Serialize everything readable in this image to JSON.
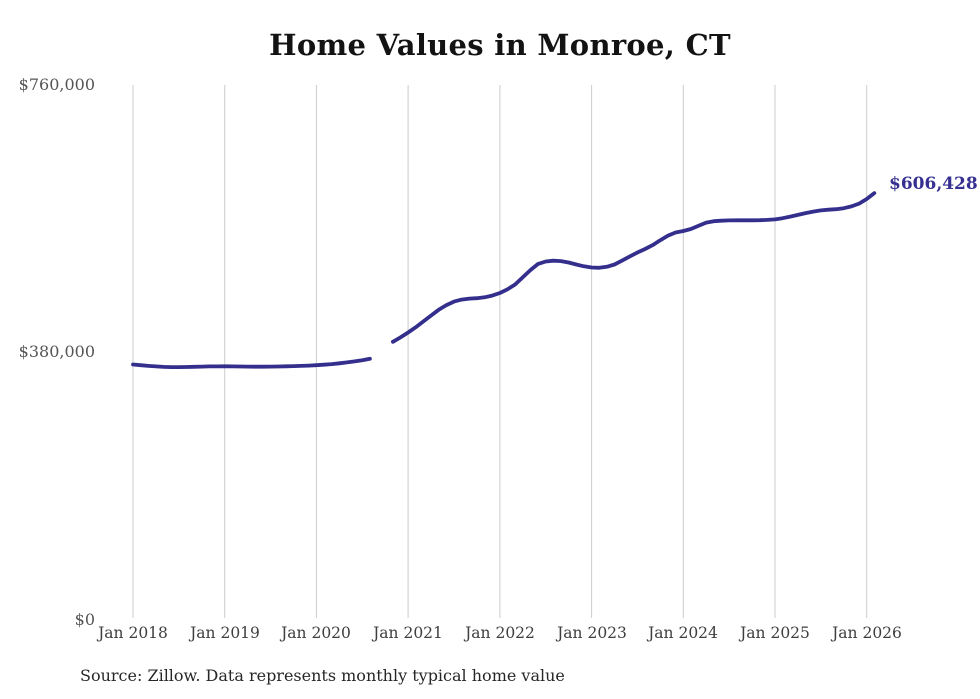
{
  "header": {
    "title": "Home Values in Monroe, CT"
  },
  "footer": {
    "source_note": "Source: Zillow. Data represents monthly typical home value"
  },
  "colors": {
    "line": "#342e8c",
    "end_label": "#353091",
    "gridline": "#cccccc",
    "background": "#ffffff"
  },
  "chart_data": {
    "type": "line",
    "title": "Home Values in Monroe, CT",
    "xlabel": "",
    "ylabel": "",
    "ylim": [
      0,
      760000
    ],
    "y_tick_values": [
      760000,
      380000,
      0
    ],
    "y_tick_labels": [
      "$760,000",
      "$380,000",
      "$0"
    ],
    "x_tick_labels": [
      "Jan 2018",
      "Jan 2019",
      "Jan 2020",
      "Jan 2021",
      "Jan 2022",
      "Jan 2023",
      "Jan 2024",
      "Jan 2025",
      "Jan 2026"
    ],
    "grid": "vertical-only",
    "legend": "none",
    "end_label": "$606,428",
    "end_value": 606428,
    "gap_months": [
      "2020-09",
      "2020-10"
    ],
    "series": [
      {
        "name": "Monthly typical home value",
        "x": [
          "2018-01",
          "2018-02",
          "2018-03",
          "2018-04",
          "2018-05",
          "2018-06",
          "2018-07",
          "2018-08",
          "2018-09",
          "2018-10",
          "2018-11",
          "2018-12",
          "2019-01",
          "2019-02",
          "2019-03",
          "2019-04",
          "2019-05",
          "2019-06",
          "2019-07",
          "2019-08",
          "2019-09",
          "2019-10",
          "2019-11",
          "2019-12",
          "2020-01",
          "2020-02",
          "2020-03",
          "2020-04",
          "2020-05",
          "2020-06",
          "2020-07",
          "2020-08",
          "2020-09",
          "2020-10",
          "2020-11",
          "2020-12",
          "2021-01",
          "2021-02",
          "2021-03",
          "2021-04",
          "2021-05",
          "2021-06",
          "2021-07",
          "2021-08",
          "2021-09",
          "2021-10",
          "2021-11",
          "2021-12",
          "2022-01",
          "2022-02",
          "2022-03",
          "2022-04",
          "2022-05",
          "2022-06",
          "2022-07",
          "2022-08",
          "2022-09",
          "2022-10",
          "2022-11",
          "2022-12",
          "2023-01",
          "2023-02",
          "2023-03",
          "2023-04",
          "2023-05",
          "2023-06",
          "2023-07",
          "2023-08",
          "2023-09",
          "2023-10",
          "2023-11",
          "2023-12",
          "2024-01",
          "2024-02",
          "2024-03",
          "2024-04",
          "2024-05",
          "2024-06",
          "2024-07",
          "2024-08",
          "2024-09",
          "2024-10",
          "2024-11",
          "2024-12",
          "2025-01",
          "2025-02",
          "2025-03",
          "2025-04",
          "2025-05",
          "2025-06",
          "2025-07",
          "2025-08",
          "2025-09",
          "2025-10",
          "2025-11",
          "2025-12",
          "2026-01",
          "2026-02"
        ],
        "values": [
          363000,
          362000,
          361000,
          360200,
          359600,
          359300,
          359200,
          359400,
          359700,
          360000,
          360200,
          360300,
          360400,
          360300,
          360100,
          359900,
          359800,
          359800,
          359900,
          360100,
          360400,
          360700,
          361000,
          361400,
          361900,
          362600,
          363500,
          364600,
          365900,
          367400,
          369000,
          371000,
          null,
          null,
          395200,
          401500,
          408400,
          416000,
          424200,
          432600,
          440600,
          447400,
          452300,
          455200,
          456500,
          457100,
          458400,
          460900,
          464500,
          469800,
          476600,
          487000,
          497000,
          505800,
          509200,
          510400,
          509800,
          507800,
          505000,
          502400,
          500800,
          500300,
          501800,
          505000,
          510500,
          516500,
          522000,
          527000,
          532500,
          539500,
          546000,
          550500,
          552600,
          555500,
          560000,
          564500,
          566500,
          567200,
          567600,
          567800,
          567800,
          567800,
          568000,
          568400,
          569100,
          570800,
          573000,
          575500,
          578000,
          580200,
          581800,
          582800,
          583600,
          585000,
          587500,
          591500,
          598000,
          606428
        ]
      }
    ]
  }
}
